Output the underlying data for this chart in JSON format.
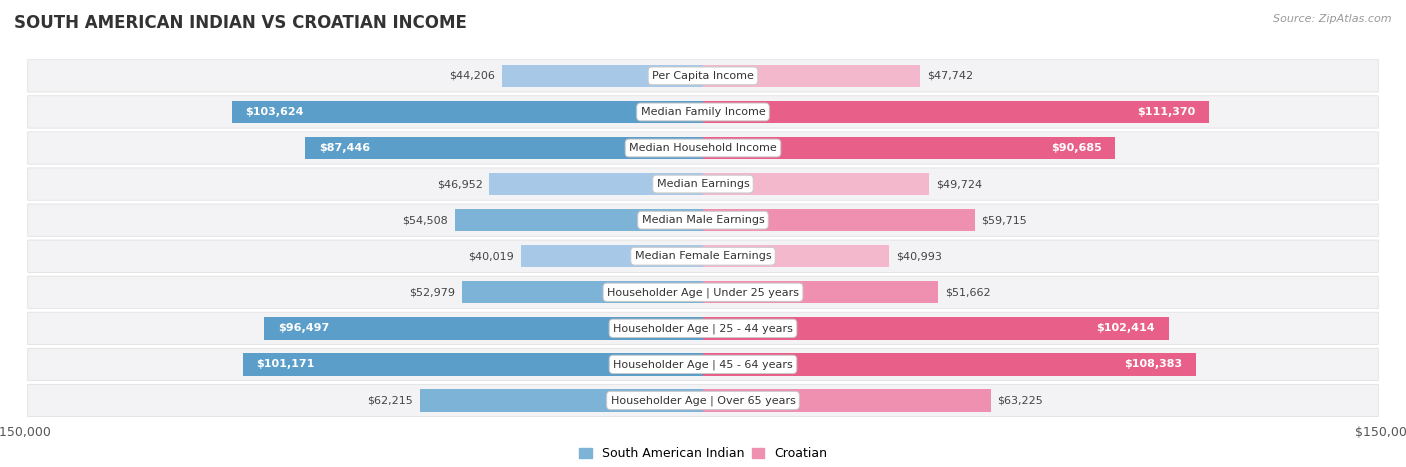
{
  "title": "SOUTH AMERICAN INDIAN VS CROATIAN INCOME",
  "source": "Source: ZipAtlas.com",
  "categories": [
    "Per Capita Income",
    "Median Family Income",
    "Median Household Income",
    "Median Earnings",
    "Median Male Earnings",
    "Median Female Earnings",
    "Householder Age | Under 25 years",
    "Householder Age | 25 - 44 years",
    "Householder Age | 45 - 64 years",
    "Householder Age | Over 65 years"
  ],
  "south_american_indian": [
    44206,
    103624,
    87446,
    46952,
    54508,
    40019,
    52979,
    96497,
    101171,
    62215
  ],
  "croatian": [
    47742,
    111370,
    90685,
    49724,
    59715,
    40993,
    51662,
    102414,
    108383,
    63225
  ],
  "south_american_labels": [
    "$44,206",
    "$103,624",
    "$87,446",
    "$46,952",
    "$54,508",
    "$40,019",
    "$52,979",
    "$96,497",
    "$101,171",
    "$62,215"
  ],
  "croatian_labels": [
    "$47,742",
    "$111,370",
    "$90,685",
    "$49,724",
    "$59,715",
    "$40,993",
    "$51,662",
    "$102,414",
    "$108,383",
    "$63,225"
  ],
  "max_value": 150000,
  "blue_light": "#A8C8E8",
  "blue_medium": "#7EB3D8",
  "blue_strong": "#5B9EC9",
  "pink_light": "#F4B8CC",
  "pink_medium": "#F090B0",
  "pink_strong": "#E8608A",
  "row_bg_light": "#FAFAFA",
  "row_bg_medium": "#F0F0F4",
  "bar_height": 0.62,
  "title_fontsize": 12,
  "label_fontsize": 8,
  "category_fontsize": 8,
  "source_fontsize": 8,
  "axis_label": "$150,000",
  "legend_left": "South American Indian",
  "legend_right": "Croatian",
  "inside_threshold": 70000
}
